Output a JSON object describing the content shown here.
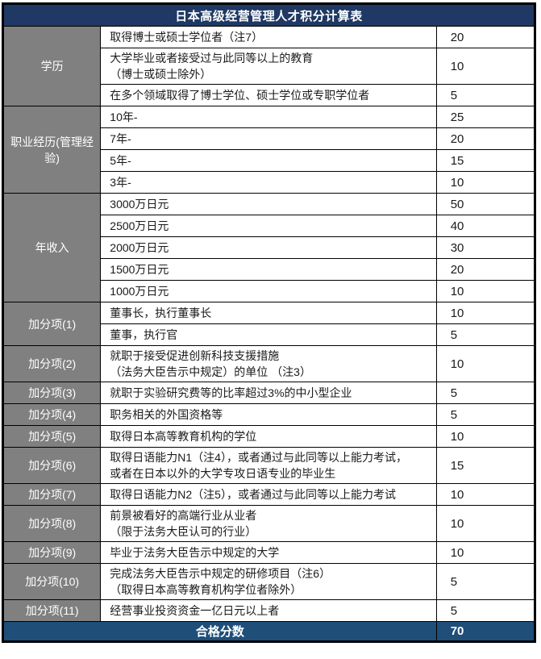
{
  "title": "日本高级经营管理人才积分计算表",
  "colors": {
    "title_bg": "#1F3864",
    "footer_bg": "#1F4E79",
    "category_bg": "#808080",
    "border": "#000000"
  },
  "sections": [
    {
      "category": "学历",
      "rows": [
        {
          "lines": [
            "取得博士或硕士学位者（注7）"
          ],
          "score": 20
        },
        {
          "lines": [
            "大学毕业或者接受过与此同等以上的教育",
            "（博士或硕士除外）"
          ],
          "score": 10
        },
        {
          "lines": [
            "在多个领域取得了博士学位、硕士学位或专职学位者"
          ],
          "score": 5
        }
      ]
    },
    {
      "category": "职业经历(管理经验)",
      "rows": [
        {
          "lines": [
            "10年-"
          ],
          "score": 25
        },
        {
          "lines": [
            "7年-"
          ],
          "score": 20
        },
        {
          "lines": [
            "5年-"
          ],
          "score": 15
        },
        {
          "lines": [
            "3年-"
          ],
          "score": 10
        }
      ]
    },
    {
      "category": "年收入",
      "rows": [
        {
          "lines": [
            "3000万日元"
          ],
          "score": 50
        },
        {
          "lines": [
            "2500万日元"
          ],
          "score": 40
        },
        {
          "lines": [
            "2000万日元"
          ],
          "score": 30
        },
        {
          "lines": [
            "1500万日元"
          ],
          "score": 20
        },
        {
          "lines": [
            "1000万日元"
          ],
          "score": 10
        }
      ]
    },
    {
      "category": "加分项(1)",
      "rows": [
        {
          "lines": [
            "董事长，执行董事长"
          ],
          "score": 10
        },
        {
          "lines": [
            "董事，执行官"
          ],
          "score": 5
        }
      ]
    },
    {
      "category": "加分项(2)",
      "rows": [
        {
          "lines": [
            "就职于接受促进创新科技支援措施",
            "（法务大臣告示中规定）的单位 （注3）"
          ],
          "score": 10
        }
      ]
    },
    {
      "category": "加分项(3)",
      "rows": [
        {
          "lines": [
            "就职于实验研究费等的比率超过3%的中小型企业"
          ],
          "score": 5
        }
      ]
    },
    {
      "category": "加分项(4)",
      "rows": [
        {
          "lines": [
            "职务相关的外国资格等"
          ],
          "score": 5
        }
      ]
    },
    {
      "category": "加分项(5)",
      "rows": [
        {
          "lines": [
            "取得日本高等教育机构的学位"
          ],
          "score": 10
        }
      ]
    },
    {
      "category": "加分项(6)",
      "rows": [
        {
          "lines": [
            "取得日语能力N1（注4），或者通过与此同等以上能力考试，",
            "或者在日本以外的大学专攻日语专业的毕业生"
          ],
          "score": 15
        }
      ]
    },
    {
      "category": "加分项(7)",
      "rows": [
        {
          "lines": [
            "取得日语能力N2（注5），或者通过与此同等以上能力考试"
          ],
          "score": 10
        }
      ]
    },
    {
      "category": "加分项(8)",
      "rows": [
        {
          "lines": [
            "前景被看好的高端行业从业者",
            "（限于法务大臣认可的行业）"
          ],
          "score": 10
        }
      ]
    },
    {
      "category": "加分项(9)",
      "rows": [
        {
          "lines": [
            "毕业于法务大臣告示中规定的大学"
          ],
          "score": 10
        }
      ]
    },
    {
      "category": "加分项(10)",
      "rows": [
        {
          "lines": [
            "完成法务大臣告示中规定的研修项目（注6）",
            "（取得日本高等教育机构学位者除外）"
          ],
          "score": 5
        }
      ]
    },
    {
      "category": "加分项(11)",
      "rows": [
        {
          "lines": [
            "经营事业投资资金一亿日元以上者"
          ],
          "score": 5
        }
      ]
    }
  ],
  "footer": {
    "label": "合格分数",
    "score": 70
  }
}
